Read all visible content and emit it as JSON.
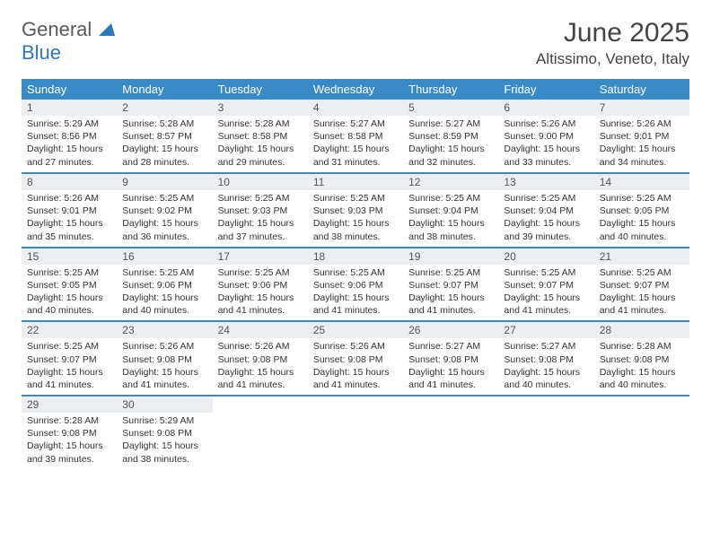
{
  "logo": {
    "part1": "General",
    "part2": "Blue"
  },
  "header": {
    "month_title": "June 2025",
    "location": "Altissimo, Veneto, Italy"
  },
  "colors": {
    "header_bg": "#3a8ac8",
    "daynum_bg": "#eceff1",
    "border": "#3a8ac8"
  },
  "day_labels": [
    "Sunday",
    "Monday",
    "Tuesday",
    "Wednesday",
    "Thursday",
    "Friday",
    "Saturday"
  ],
  "weeks": [
    [
      {
        "n": "1",
        "sunrise": "Sunrise: 5:29 AM",
        "sunset": "Sunset: 8:56 PM",
        "dl1": "Daylight: 15 hours",
        "dl2": "and 27 minutes."
      },
      {
        "n": "2",
        "sunrise": "Sunrise: 5:28 AM",
        "sunset": "Sunset: 8:57 PM",
        "dl1": "Daylight: 15 hours",
        "dl2": "and 28 minutes."
      },
      {
        "n": "3",
        "sunrise": "Sunrise: 5:28 AM",
        "sunset": "Sunset: 8:58 PM",
        "dl1": "Daylight: 15 hours",
        "dl2": "and 29 minutes."
      },
      {
        "n": "4",
        "sunrise": "Sunrise: 5:27 AM",
        "sunset": "Sunset: 8:58 PM",
        "dl1": "Daylight: 15 hours",
        "dl2": "and 31 minutes."
      },
      {
        "n": "5",
        "sunrise": "Sunrise: 5:27 AM",
        "sunset": "Sunset: 8:59 PM",
        "dl1": "Daylight: 15 hours",
        "dl2": "and 32 minutes."
      },
      {
        "n": "6",
        "sunrise": "Sunrise: 5:26 AM",
        "sunset": "Sunset: 9:00 PM",
        "dl1": "Daylight: 15 hours",
        "dl2": "and 33 minutes."
      },
      {
        "n": "7",
        "sunrise": "Sunrise: 5:26 AM",
        "sunset": "Sunset: 9:01 PM",
        "dl1": "Daylight: 15 hours",
        "dl2": "and 34 minutes."
      }
    ],
    [
      {
        "n": "8",
        "sunrise": "Sunrise: 5:26 AM",
        "sunset": "Sunset: 9:01 PM",
        "dl1": "Daylight: 15 hours",
        "dl2": "and 35 minutes."
      },
      {
        "n": "9",
        "sunrise": "Sunrise: 5:25 AM",
        "sunset": "Sunset: 9:02 PM",
        "dl1": "Daylight: 15 hours",
        "dl2": "and 36 minutes."
      },
      {
        "n": "10",
        "sunrise": "Sunrise: 5:25 AM",
        "sunset": "Sunset: 9:03 PM",
        "dl1": "Daylight: 15 hours",
        "dl2": "and 37 minutes."
      },
      {
        "n": "11",
        "sunrise": "Sunrise: 5:25 AM",
        "sunset": "Sunset: 9:03 PM",
        "dl1": "Daylight: 15 hours",
        "dl2": "and 38 minutes."
      },
      {
        "n": "12",
        "sunrise": "Sunrise: 5:25 AM",
        "sunset": "Sunset: 9:04 PM",
        "dl1": "Daylight: 15 hours",
        "dl2": "and 38 minutes."
      },
      {
        "n": "13",
        "sunrise": "Sunrise: 5:25 AM",
        "sunset": "Sunset: 9:04 PM",
        "dl1": "Daylight: 15 hours",
        "dl2": "and 39 minutes."
      },
      {
        "n": "14",
        "sunrise": "Sunrise: 5:25 AM",
        "sunset": "Sunset: 9:05 PM",
        "dl1": "Daylight: 15 hours",
        "dl2": "and 40 minutes."
      }
    ],
    [
      {
        "n": "15",
        "sunrise": "Sunrise: 5:25 AM",
        "sunset": "Sunset: 9:05 PM",
        "dl1": "Daylight: 15 hours",
        "dl2": "and 40 minutes."
      },
      {
        "n": "16",
        "sunrise": "Sunrise: 5:25 AM",
        "sunset": "Sunset: 9:06 PM",
        "dl1": "Daylight: 15 hours",
        "dl2": "and 40 minutes."
      },
      {
        "n": "17",
        "sunrise": "Sunrise: 5:25 AM",
        "sunset": "Sunset: 9:06 PM",
        "dl1": "Daylight: 15 hours",
        "dl2": "and 41 minutes."
      },
      {
        "n": "18",
        "sunrise": "Sunrise: 5:25 AM",
        "sunset": "Sunset: 9:06 PM",
        "dl1": "Daylight: 15 hours",
        "dl2": "and 41 minutes."
      },
      {
        "n": "19",
        "sunrise": "Sunrise: 5:25 AM",
        "sunset": "Sunset: 9:07 PM",
        "dl1": "Daylight: 15 hours",
        "dl2": "and 41 minutes."
      },
      {
        "n": "20",
        "sunrise": "Sunrise: 5:25 AM",
        "sunset": "Sunset: 9:07 PM",
        "dl1": "Daylight: 15 hours",
        "dl2": "and 41 minutes."
      },
      {
        "n": "21",
        "sunrise": "Sunrise: 5:25 AM",
        "sunset": "Sunset: 9:07 PM",
        "dl1": "Daylight: 15 hours",
        "dl2": "and 41 minutes."
      }
    ],
    [
      {
        "n": "22",
        "sunrise": "Sunrise: 5:25 AM",
        "sunset": "Sunset: 9:07 PM",
        "dl1": "Daylight: 15 hours",
        "dl2": "and 41 minutes."
      },
      {
        "n": "23",
        "sunrise": "Sunrise: 5:26 AM",
        "sunset": "Sunset: 9:08 PM",
        "dl1": "Daylight: 15 hours",
        "dl2": "and 41 minutes."
      },
      {
        "n": "24",
        "sunrise": "Sunrise: 5:26 AM",
        "sunset": "Sunset: 9:08 PM",
        "dl1": "Daylight: 15 hours",
        "dl2": "and 41 minutes."
      },
      {
        "n": "25",
        "sunrise": "Sunrise: 5:26 AM",
        "sunset": "Sunset: 9:08 PM",
        "dl1": "Daylight: 15 hours",
        "dl2": "and 41 minutes."
      },
      {
        "n": "26",
        "sunrise": "Sunrise: 5:27 AM",
        "sunset": "Sunset: 9:08 PM",
        "dl1": "Daylight: 15 hours",
        "dl2": "and 41 minutes."
      },
      {
        "n": "27",
        "sunrise": "Sunrise: 5:27 AM",
        "sunset": "Sunset: 9:08 PM",
        "dl1": "Daylight: 15 hours",
        "dl2": "and 40 minutes."
      },
      {
        "n": "28",
        "sunrise": "Sunrise: 5:28 AM",
        "sunset": "Sunset: 9:08 PM",
        "dl1": "Daylight: 15 hours",
        "dl2": "and 40 minutes."
      }
    ],
    [
      {
        "n": "29",
        "sunrise": "Sunrise: 5:28 AM",
        "sunset": "Sunset: 9:08 PM",
        "dl1": "Daylight: 15 hours",
        "dl2": "and 39 minutes."
      },
      {
        "n": "30",
        "sunrise": "Sunrise: 5:29 AM",
        "sunset": "Sunset: 9:08 PM",
        "dl1": "Daylight: 15 hours",
        "dl2": "and 38 minutes."
      },
      null,
      null,
      null,
      null,
      null
    ]
  ]
}
